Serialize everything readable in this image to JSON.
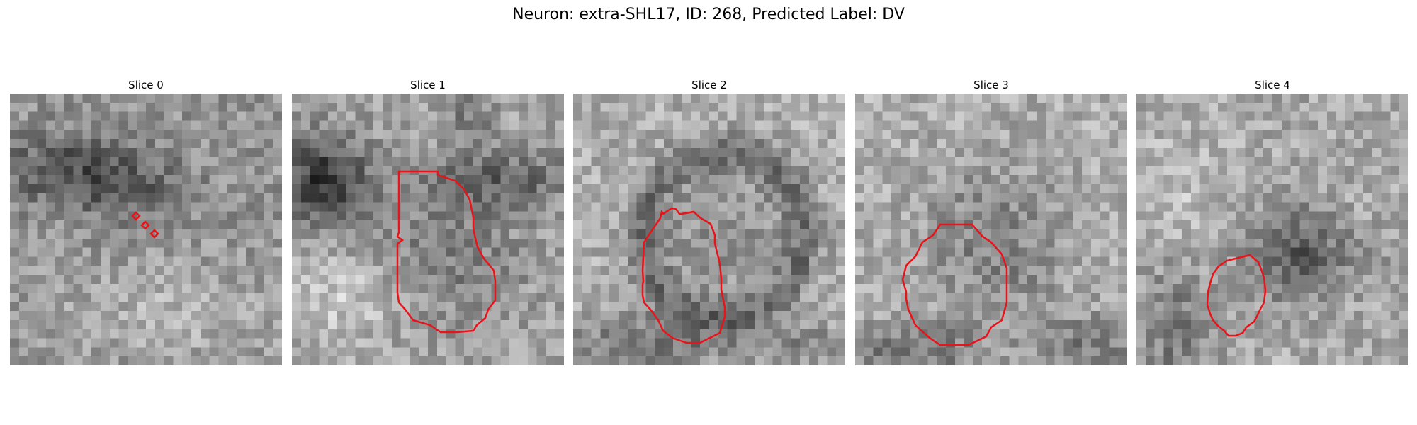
{
  "figure": {
    "title": "Neuron: extra-SHL17, ID: 268, Predicted Label: DV"
  },
  "contour_color": "#e8141a",
  "panels": [
    {
      "title": "Slice 0"
    },
    {
      "title": "Slice 1"
    },
    {
      "title": "Slice 2"
    },
    {
      "title": "Slice 3"
    },
    {
      "title": "Slice 4"
    }
  ]
}
